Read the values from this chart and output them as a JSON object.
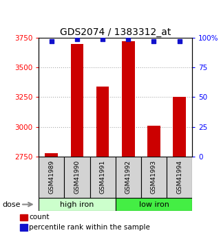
{
  "title": "GDS2074 / 1383312_at",
  "samples": [
    "GSM41989",
    "GSM41990",
    "GSM41991",
    "GSM41992",
    "GSM41993",
    "GSM41994"
  ],
  "counts": [
    2780,
    3700,
    3340,
    3720,
    3010,
    3250
  ],
  "percentiles": [
    97,
    99,
    99,
    99,
    97,
    97
  ],
  "ylim_left": [
    2750,
    3750
  ],
  "ylim_right": [
    0,
    100
  ],
  "yticks_left": [
    2750,
    3000,
    3250,
    3500,
    3750
  ],
  "yticks_right": [
    0,
    25,
    50,
    75,
    100
  ],
  "ytick_labels_right": [
    "0",
    "25",
    "50",
    "75",
    "100%"
  ],
  "bar_color": "#cc0000",
  "dot_color": "#1111cc",
  "groups": [
    {
      "label": "high iron",
      "indices": [
        0,
        1,
        2
      ],
      "color": "#ccffcc"
    },
    {
      "label": "low iron",
      "indices": [
        3,
        4,
        5
      ],
      "color": "#44ee44"
    }
  ],
  "dose_label": "dose",
  "legend_count": "count",
  "legend_percentile": "percentile rank within the sample",
  "grid_color": "#aaaaaa",
  "title_fontsize": 10,
  "tick_fontsize": 7.5,
  "sample_fontsize": 6.5,
  "group_fontsize": 8,
  "legend_fontsize": 7.5
}
